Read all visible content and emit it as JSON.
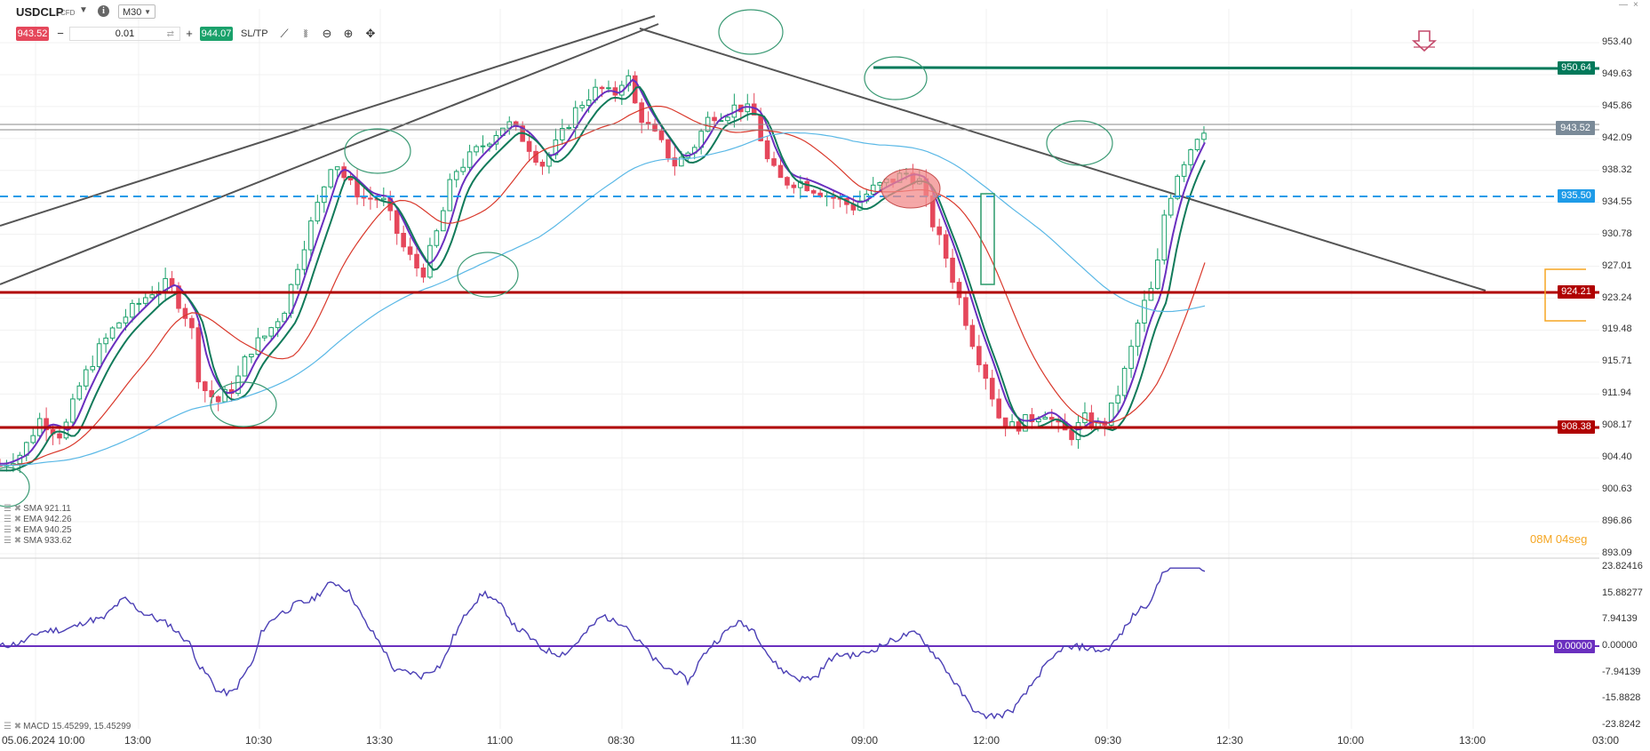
{
  "instrument": {
    "symbol": "USDCLP",
    "type": "CFD",
    "timeframe": "M30",
    "info_icon": "info-icon"
  },
  "order": {
    "bid": "943.52",
    "ask": "944.07",
    "quantity": "0.01",
    "minus": "−",
    "plus": "+",
    "sltp": "SL/TP"
  },
  "toolbar_icons": [
    "trendline-icon",
    "candles-icon",
    "zoom-out-icon",
    "zoom-in-icon",
    "crosshair-icon"
  ],
  "price_tags": {
    "line_950": "950.64",
    "current": "943.52",
    "line_935": "935.50",
    "line_924": "924.21",
    "line_908": "908.38",
    "macd_zero": "0.00000"
  },
  "colors": {
    "sell": "#e5475b",
    "buy": "#1aa16b",
    "resistance": "#b00000",
    "green_line": "#00795a",
    "blue_dashed": "#1e9be8",
    "ema_purple": "#6a2fbf",
    "ema_green": "#117a5a",
    "sma_red": "#d9382b",
    "sma_blue": "#5ab8e6",
    "macd": "#4b3fb5"
  },
  "indicators": [
    {
      "label": "SMA 921.11",
      "color": "#d9382b"
    },
    {
      "label": "EMA 942.26",
      "color": "#6a2fbf"
    },
    {
      "label": "EMA 940.25",
      "color": "#117a5a"
    },
    {
      "label": "SMA 933.62",
      "color": "#5ab8e6"
    }
  ],
  "macd_label": "MACD 15.45299, 15.45299",
  "countdown": {
    "minutes": "08M",
    "seconds": "04seg"
  },
  "price_axis": [
    "953.40",
    "949.63",
    "945.86",
    "942.09",
    "938.32",
    "934.55",
    "930.78",
    "927.01",
    "923.24",
    "919.48",
    "915.71",
    "911.94",
    "908.17",
    "904.40",
    "900.63",
    "896.86",
    "893.09"
  ],
  "macd_axis": [
    "23.82416",
    "15.88277",
    "7.94139",
    "0.00000",
    "-7.94139",
    "-15.8828",
    "-23.8242"
  ],
  "time_axis": [
    "05.06.2024 10:00",
    "13:00",
    "10:30",
    "13:30",
    "11:00",
    "08:30",
    "11:30",
    "09:00",
    "12:00",
    "09:30",
    "12:30",
    "10:00",
    "13:00",
    "03:00"
  ],
  "window_controls": {
    "min": "—",
    "close": "×"
  },
  "chart_data": {
    "type": "candlestick",
    "instrument": "USDCLP",
    "timeframe": "M30",
    "ylim": [
      893.09,
      955.5
    ],
    "close_path": [
      [
        0,
        903.5
      ],
      [
        25,
        905
      ],
      [
        45,
        909
      ],
      [
        70,
        907
      ],
      [
        90,
        913
      ],
      [
        110,
        917
      ],
      [
        130,
        920
      ],
      [
        150,
        922
      ],
      [
        170,
        924
      ],
      [
        190,
        925
      ],
      [
        215,
        920
      ],
      [
        225,
        913
      ],
      [
        245,
        911
      ],
      [
        265,
        913
      ],
      [
        280,
        917
      ],
      [
        300,
        919
      ],
      [
        320,
        922
      ],
      [
        340,
        929
      ],
      [
        360,
        935
      ],
      [
        375,
        940
      ],
      [
        390,
        937
      ],
      [
        410,
        935
      ],
      [
        430,
        935
      ],
      [
        455,
        929
      ],
      [
        475,
        926
      ],
      [
        495,
        932
      ],
      [
        510,
        938
      ],
      [
        530,
        940
      ],
      [
        550,
        942
      ],
      [
        570,
        944
      ],
      [
        590,
        942
      ],
      [
        610,
        939
      ],
      [
        630,
        942
      ],
      [
        645,
        945
      ],
      [
        660,
        947
      ],
      [
        675,
        948
      ],
      [
        690,
        947
      ],
      [
        705,
        950
      ],
      [
        715,
        946
      ],
      [
        725,
        944
      ],
      [
        740,
        942
      ],
      [
        760,
        939
      ],
      [
        780,
        941
      ],
      [
        800,
        945
      ],
      [
        815,
        945
      ],
      [
        830,
        946
      ],
      [
        848,
        945
      ],
      [
        865,
        939
      ],
      [
        880,
        937
      ],
      [
        900,
        937
      ],
      [
        920,
        936
      ],
      [
        940,
        935
      ],
      [
        960,
        934
      ],
      [
        980,
        936
      ],
      [
        1000,
        937
      ],
      [
        1020,
        938
      ],
      [
        1035,
        937
      ],
      [
        1050,
        932
      ],
      [
        1065,
        928
      ],
      [
        1080,
        923
      ],
      [
        1095,
        918
      ],
      [
        1110,
        914
      ],
      [
        1125,
        909
      ],
      [
        1140,
        908
      ],
      [
        1160,
        909
      ],
      [
        1175,
        910
      ],
      [
        1190,
        908
      ],
      [
        1205,
        907
      ],
      [
        1220,
        909
      ],
      [
        1240,
        908
      ],
      [
        1255,
        911
      ],
      [
        1270,
        916
      ],
      [
        1285,
        922
      ],
      [
        1300,
        925
      ],
      [
        1310,
        933
      ],
      [
        1325,
        938
      ],
      [
        1340,
        941
      ],
      [
        1350,
        943
      ],
      [
        1357,
        943.52
      ]
    ],
    "levels": [
      950.64,
      935.5,
      924.21,
      908.38
    ],
    "macd": {
      "label": "MACD 15.45299, 15.45299",
      "ylim": [
        -23.82416,
        23.82416
      ],
      "last": 15.45299
    }
  }
}
